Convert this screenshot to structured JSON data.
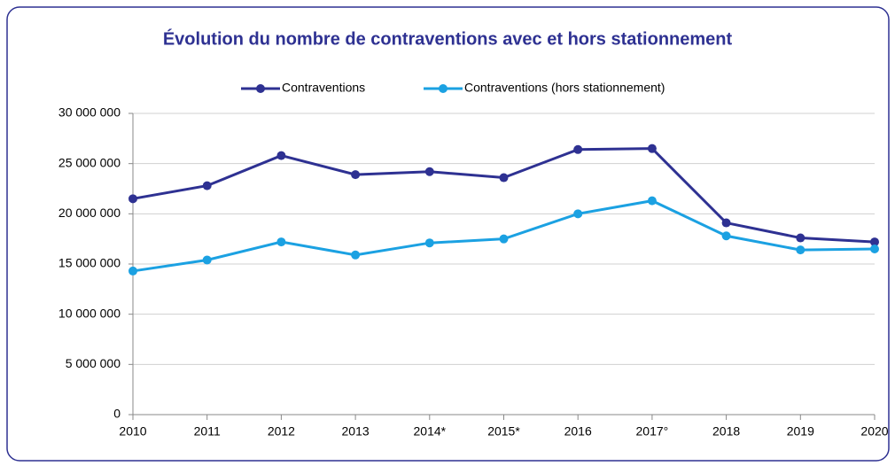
{
  "chart_data": {
    "type": "line",
    "title": "Évolution du nombre de contraventions avec et hors stationnement",
    "categories": [
      "2010",
      "2011",
      "2012",
      "2013",
      "2014*",
      "2015*",
      "2016",
      "2017°",
      "2018",
      "2019",
      "2020"
    ],
    "series": [
      {
        "name": "Contraventions",
        "color": "#2e3192",
        "values": [
          21500000,
          22800000,
          25800000,
          23900000,
          24200000,
          23600000,
          26400000,
          26500000,
          19100000,
          17600000,
          17200000
        ]
      },
      {
        "name": "Contraventions (hors stationnement)",
        "color": "#1ba1e2",
        "values": [
          14300000,
          15400000,
          17200000,
          15900000,
          17100000,
          17500000,
          20000000,
          21300000,
          17800000,
          16400000,
          16500000
        ]
      }
    ],
    "ylim": [
      0,
      30000000
    ],
    "yticks": [
      0,
      {
        "value": 5000000,
        "label": "5 000 000"
      },
      {
        "value": 10000000,
        "label": "10 000 000"
      },
      {
        "value": 15000000,
        "label": "15 000 000"
      },
      {
        "value": 20000000,
        "label": "20 000 000"
      },
      {
        "value": 25000000,
        "label": "25 000 000"
      },
      {
        "value": 30000000,
        "label": "30 000 000"
      }
    ],
    "grid": true,
    "legend": "top"
  }
}
